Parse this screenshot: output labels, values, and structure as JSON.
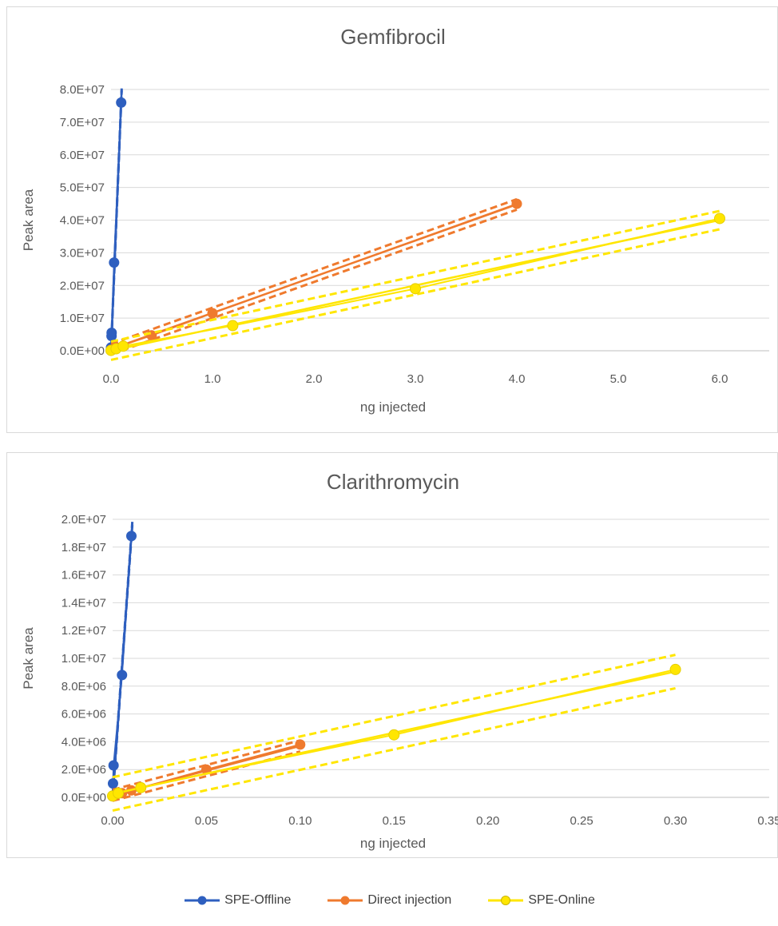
{
  "chart_data": [
    {
      "type": "scatter",
      "title": "Gemfibrocil",
      "xlabel": "ng injected",
      "ylabel": "Peak area",
      "xlim": [
        0,
        6.0
      ],
      "ylim": [
        0,
        80000000
      ],
      "x_ticks": [
        "0.0",
        "1.0",
        "2.0",
        "3.0",
        "4.0",
        "5.0",
        "6.0"
      ],
      "y_ticks": [
        "0.0E+00",
        "1.0E+07",
        "2.0E+07",
        "3.0E+07",
        "4.0E+07",
        "5.0E+07",
        "6.0E+07",
        "7.0E+07",
        "8.0E+07"
      ],
      "grid": true,
      "series": [
        {
          "name": "SPE-Offline",
          "color": "#2e5fbf",
          "points": [
            [
              0.0,
              500000
            ],
            [
              0.0,
              1000000
            ],
            [
              0.005,
              4500000
            ],
            [
              0.006,
              5500000
            ],
            [
              0.03,
              27000000
            ],
            [
              0.1,
              76000000
            ]
          ],
          "fit": [
            [
              0.0,
              0
            ],
            [
              0.105,
              80000000
            ]
          ],
          "band": 0.004
        },
        {
          "name": "Direct injection",
          "color": "#ef7a2e",
          "points": [
            [
              0.0,
              300000
            ],
            [
              0.05,
              1000000
            ],
            [
              0.4,
              4700000
            ],
            [
              1.0,
              11500000
            ],
            [
              4.0,
              45000000
            ]
          ],
          "fit": [
            [
              0.0,
              500000
            ],
            [
              4.0,
              44800000
            ]
          ],
          "band": 0.02
        },
        {
          "name": "SPE-Online",
          "color": "#ffe600",
          "points": [
            [
              0.0,
              100000
            ],
            [
              0.05,
              600000
            ],
            [
              0.12,
              1400000
            ],
            [
              1.2,
              7700000
            ],
            [
              3.0,
              19000000
            ],
            [
              6.0,
              40500000
            ]
          ],
          "fit": [
            [
              0.0,
              0
            ],
            [
              6.0,
              40000000
            ]
          ],
          "band": 0.035
        }
      ]
    },
    {
      "type": "scatter",
      "title": "Clarithromycin",
      "xlabel": "ng injected",
      "ylabel": "Peak area",
      "xlim": [
        0,
        0.35
      ],
      "ylim": [
        0,
        20000000
      ],
      "x_ticks": [
        "0.00",
        "0.05",
        "0.10",
        "0.15",
        "0.20",
        "0.25",
        "0.30",
        "0.35"
      ],
      "y_ticks": [
        "0.0E+00",
        "2.0E+06",
        "4.0E+06",
        "6.0E+06",
        "8.0E+06",
        "1.0E+07",
        "1.2E+07",
        "1.4E+07",
        "1.6E+07",
        "1.8E+07",
        "2.0E+07"
      ],
      "grid": true,
      "series": [
        {
          "name": "SPE-Offline",
          "color": "#2e5fbf",
          "points": [
            [
              0.0,
              100000
            ],
            [
              0.0002,
              1000000
            ],
            [
              0.0005,
              2300000
            ],
            [
              0.005,
              8800000
            ],
            [
              0.01,
              18800000
            ]
          ],
          "fit": [
            [
              0.0,
              0
            ],
            [
              0.0105,
              19700000
            ]
          ],
          "band": 0.006
        },
        {
          "name": "Direct injection",
          "color": "#ef7a2e",
          "points": [
            [
              0.0,
              100000
            ],
            [
              0.005,
              300000
            ],
            [
              0.01,
              500000
            ],
            [
              0.05,
              2000000
            ],
            [
              0.1,
              3800000
            ]
          ],
          "fit": [
            [
              0.0,
              150000
            ],
            [
              0.1,
              3700000
            ]
          ],
          "band": 0.02
        },
        {
          "name": "SPE-Online",
          "color": "#ffe600",
          "points": [
            [
              0.0,
              100000
            ],
            [
              0.003,
              300000
            ],
            [
              0.015,
              700000
            ],
            [
              0.15,
              4500000
            ],
            [
              0.3,
              9200000
            ]
          ],
          "fit": [
            [
              0.0,
              250000
            ],
            [
              0.3,
              9050000
            ]
          ],
          "band": 0.06
        }
      ]
    }
  ],
  "legend": {
    "items": [
      {
        "label": "SPE-Offline",
        "color": "#2e5fbf"
      },
      {
        "label": "Direct injection",
        "color": "#ef7a2e"
      },
      {
        "label": "SPE-Online",
        "color": "#ffe600"
      }
    ]
  }
}
